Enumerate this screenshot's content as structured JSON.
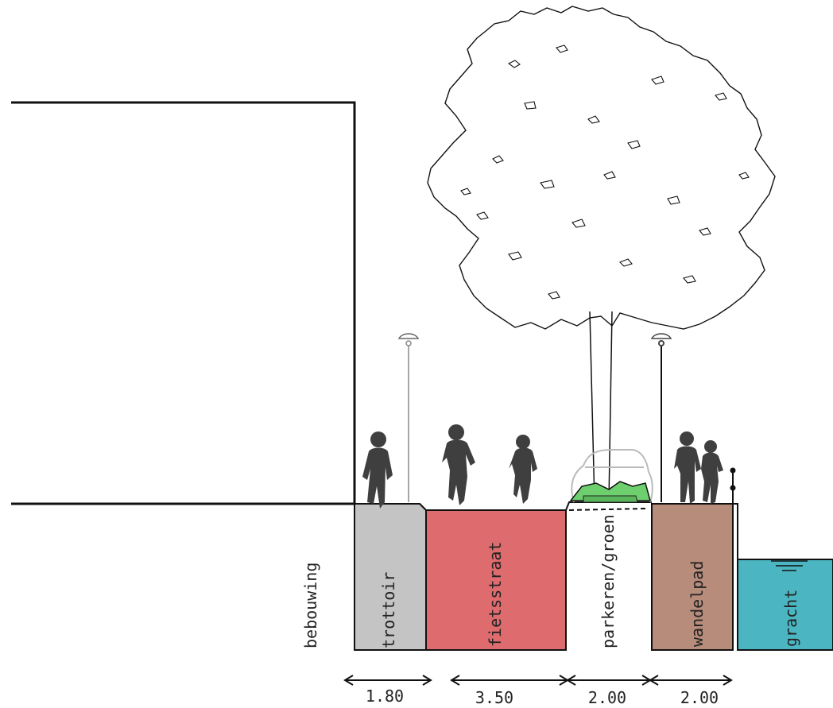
{
  "zones": {
    "bebouwing": "bebouwing",
    "trottoir": "trottoir",
    "fietsstraat": "fietsstraat",
    "parkeren": "parkeren/groen",
    "wandelpad": "wandelpad",
    "gracht": "gracht"
  },
  "dimensions": [
    "1.80",
    "3.50",
    "2.00",
    "2.00"
  ],
  "colors": {
    "trottoir": "#c4c4c4",
    "fietsstraat": "#de6b6d",
    "groen": "#6ecf6e",
    "wandelpad": "#b78c7b",
    "gracht": "#4bb6c2",
    "silhouette": "#3f3f3f"
  }
}
